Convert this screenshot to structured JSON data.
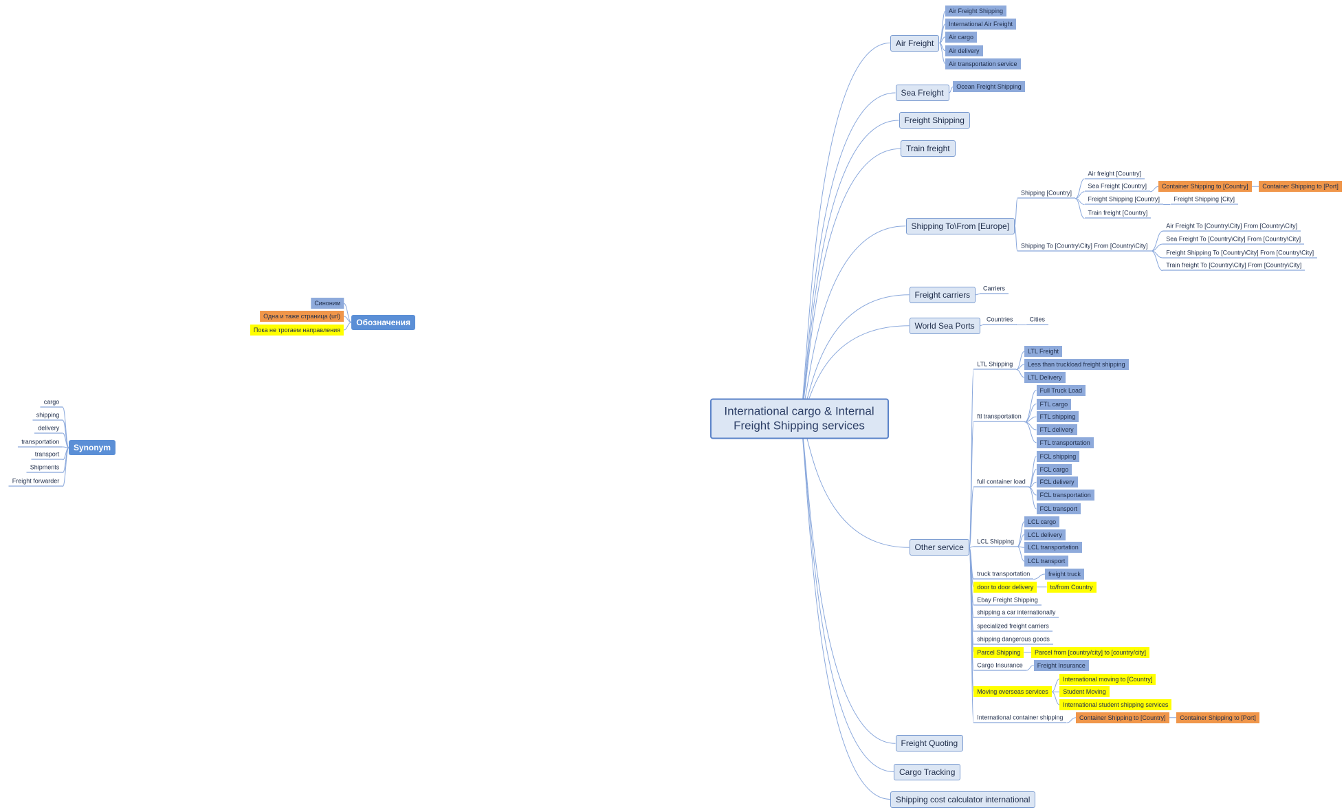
{
  "root": {
    "label": "International cargo & Internal Freight Shipping services"
  },
  "branches": [
    {
      "label": "Air Freight",
      "children": [
        {
          "label": "Air Freight Shipping"
        },
        {
          "label": "International Air Freight"
        },
        {
          "label": "Air cargo"
        },
        {
          "label": "Air delivery"
        },
        {
          "label": "Air transportation service"
        }
      ]
    },
    {
      "label": "Sea Freight",
      "children": [
        {
          "label": "Ocean Freight Shipping"
        }
      ]
    },
    {
      "label": "Freight Shipping"
    },
    {
      "label": "Train freight"
    },
    {
      "label": "Shipping To\\From [Europe]",
      "children": [
        {
          "label": "Shipping [Country]",
          "children": [
            {
              "label": "Air freight [Country]"
            },
            {
              "label": "Sea Freight [Country]",
              "children": [
                {
                  "label": "Container Shipping to [Country]",
                  "children": [
                    {
                      "label": "Container Shipping to [Port]"
                    }
                  ]
                }
              ]
            },
            {
              "label": "Freight Shipping [Country]",
              "children": [
                {
                  "label": "Freight Shipping [City]"
                }
              ]
            },
            {
              "label": "Train freight [Country]"
            }
          ]
        },
        {
          "label": "Shipping To  [Country\\City] From  [Country\\City]",
          "children": [
            {
              "label": "Air Freight To  [Country\\City] From  [Country\\City]"
            },
            {
              "label": "Sea Freight To  [Country\\City] From  [Country\\City]"
            },
            {
              "label": "Freight Shipping To  [Country\\City] From  [Country\\City]"
            },
            {
              "label": "Train freight To  [Country\\City] From  [Country\\City]"
            }
          ]
        }
      ]
    },
    {
      "label": "Freight carriers",
      "children": [
        {
          "label": "Carriers"
        }
      ]
    },
    {
      "label": "World Sea Ports",
      "children": [
        {
          "label": "Countries",
          "children": [
            {
              "label": "Cities"
            }
          ]
        }
      ]
    },
    {
      "label": "Other service",
      "children": [
        {
          "label": "LTL Shipping",
          "children": [
            {
              "label": "LTL Freight"
            },
            {
              "label": "Less than truckload freight shipping"
            },
            {
              "label": "LTL Delivery"
            }
          ]
        },
        {
          "label": "ftl transportation",
          "children": [
            {
              "label": "Full Truck Load"
            },
            {
              "label": "FTL cargo"
            },
            {
              "label": "FTL shipping"
            },
            {
              "label": "FTL delivery"
            },
            {
              "label": "FTL transportation"
            }
          ]
        },
        {
          "label": "full container load",
          "children": [
            {
              "label": "FCL shipping"
            },
            {
              "label": "FCL cargo"
            },
            {
              "label": "FCL delivery"
            },
            {
              "label": "FCL transportation"
            },
            {
              "label": "FCL transport"
            }
          ]
        },
        {
          "label": "LCL Shipping",
          "children": [
            {
              "label": "LCL cargo"
            },
            {
              "label": "LCL delivery"
            },
            {
              "label": "LCL transportation"
            },
            {
              "label": "LCL transport"
            }
          ]
        },
        {
          "label": "truck transportation",
          "children": [
            {
              "label": "freight truck"
            }
          ]
        },
        {
          "label": "door to door delivery",
          "children": [
            {
              "label": "to/from Country"
            }
          ]
        },
        {
          "label": "Ebay Freight Shipping"
        },
        {
          "label": "shipping a car internationally"
        },
        {
          "label": "specialized freight carriers"
        },
        {
          "label": "shipping dangerous goods"
        },
        {
          "label": "Parcel Shipping",
          "children": [
            {
              "label": "Parcel from [country/city] to [country/city]"
            }
          ]
        },
        {
          "label": "Cargo Insurance",
          "children": [
            {
              "label": "Freight Insurance"
            }
          ]
        },
        {
          "label": "Moving overseas services",
          "children": [
            {
              "label": "International moving to [Country]"
            },
            {
              "label": "Student Moving"
            },
            {
              "label": "International student shipping services"
            }
          ]
        },
        {
          "label": "International container shipping",
          "children": [
            {
              "label": "Container Shipping to [Country]",
              "children": [
                {
                  "label": "Container Shipping to [Port]"
                }
              ]
            }
          ]
        }
      ]
    },
    {
      "label": "Freight Quoting"
    },
    {
      "label": "Cargo Tracking"
    },
    {
      "label": "Shipping cost calculator international"
    }
  ],
  "legend": {
    "label": "Обозначения",
    "children": [
      {
        "label": "Синоним"
      },
      {
        "label": "Одна и таже страница (url)"
      },
      {
        "label": "Пока не трогаем направления"
      }
    ]
  },
  "synonym": {
    "label": "Synonym",
    "children": [
      {
        "label": "cargo"
      },
      {
        "label": "shipping"
      },
      {
        "label": "delivery"
      },
      {
        "label": "transportation"
      },
      {
        "label": "transport"
      },
      {
        "label": "Shipments"
      },
      {
        "label": "Freight forwarder"
      }
    ]
  }
}
